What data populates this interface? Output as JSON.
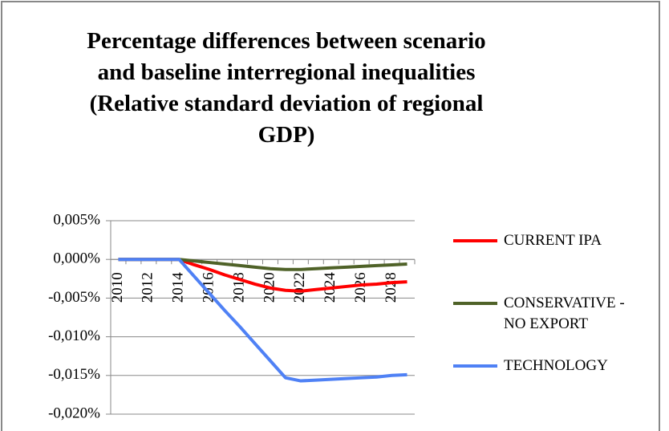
{
  "chart_data": {
    "type": "line",
    "title": "Percentage differences between scenario and baseline interregional inequalities",
    "subtitle": "(Relative standard deviation of regional GDP)",
    "categories": [
      "2010",
      null,
      "2012",
      null,
      "2014",
      null,
      "2016",
      null,
      "2018",
      null,
      "2020",
      null,
      "2022",
      null,
      "2024",
      null,
      "2026",
      null,
      "2028",
      null
    ],
    "series": [
      {
        "name": "CURRENT IPA",
        "color": "#ff0000",
        "values": [
          0,
          0,
          0,
          0,
          0,
          -0.0007,
          -0.0013,
          -0.002,
          -0.0026,
          -0.0032,
          -0.0037,
          -0.004,
          -0.0041,
          -0.0039,
          -0.0037,
          -0.0035,
          -0.0033,
          -0.0032,
          -0.003,
          -0.0029
        ]
      },
      {
        "name": "CONSERVATIVE - NO EXPORT",
        "color": "#4f6228",
        "values": [
          0,
          0,
          0,
          0,
          0,
          -0.0002,
          -0.0004,
          -0.0006,
          -0.0008,
          -0.001,
          -0.0012,
          -0.0013,
          -0.0013,
          -0.0012,
          -0.0011,
          -0.001,
          -0.0009,
          -0.0008,
          -0.0007,
          -0.0006
        ]
      },
      {
        "name": "TECHNOLOGY",
        "color": "#4f81f5",
        "values": [
          0,
          0,
          0,
          0,
          0,
          -0.0022,
          -0.0044,
          -0.0066,
          -0.0087,
          -0.0109,
          -0.0131,
          -0.0153,
          -0.0157,
          -0.0156,
          -0.0155,
          -0.0154,
          -0.0153,
          -0.0152,
          -0.015,
          -0.0149
        ]
      }
    ],
    "ylim": [
      -0.02,
      0.005
    ],
    "yticks": [
      {
        "value": 0.005,
        "label": "0,005%"
      },
      {
        "value": 0,
        "label": "0,000%"
      },
      {
        "value": -0.005,
        "label": "-0,005%"
      },
      {
        "value": -0.01,
        "label": "-0,010%"
      },
      {
        "value": -0.015,
        "label": "-0,015%"
      },
      {
        "value": -0.02,
        "label": "-0,020%"
      }
    ],
    "grid": true,
    "legend": "right"
  }
}
